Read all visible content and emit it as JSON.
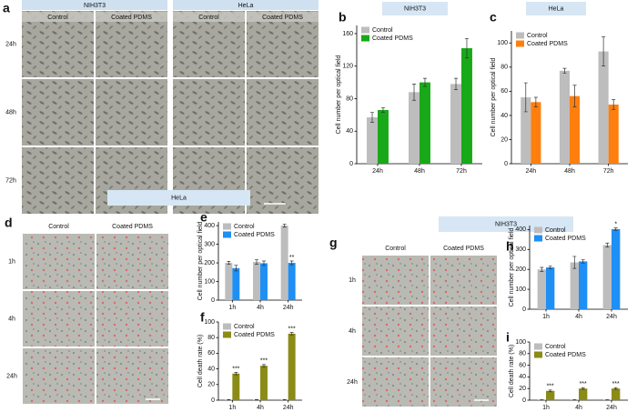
{
  "chart_data": [
    {
      "type": "bar",
      "panel": "b",
      "title": "NIH3T3",
      "ylabel": "Cell number per optical field",
      "categories": [
        "24h",
        "48h",
        "72h"
      ],
      "series": [
        {
          "name": "Control",
          "color": "#bdbdbd",
          "values": [
            57,
            88,
            98
          ],
          "errors": [
            6,
            10,
            7
          ]
        },
        {
          "name": "Coated PDMS",
          "color": "#19a819",
          "values": [
            66,
            100,
            142
          ],
          "errors": [
            3,
            5,
            12
          ]
        }
      ],
      "ylim": [
        0,
        170
      ],
      "yticks": [
        0,
        40,
        80,
        120,
        160
      ]
    },
    {
      "type": "bar",
      "panel": "c",
      "title": "HeLa",
      "ylabel": "Cell number per optical field",
      "categories": [
        "24h",
        "48h",
        "72h"
      ],
      "series": [
        {
          "name": "Control",
          "color": "#bdbdbd",
          "values": [
            55,
            77,
            93
          ],
          "errors": [
            12,
            2,
            12
          ]
        },
        {
          "name": "Coated PDMS",
          "color": "#ff7f0e",
          "values": [
            51,
            56,
            49
          ],
          "errors": [
            4,
            9,
            4
          ]
        }
      ],
      "ylim": [
        0,
        110
      ],
      "yticks": [
        0,
        20,
        40,
        60,
        80,
        100
      ]
    },
    {
      "type": "bar",
      "panel": "e",
      "ylabel": "Cell number per optical field",
      "categories": [
        "1h",
        "4h",
        "24h"
      ],
      "series": [
        {
          "name": "Control",
          "color": "#bdbdbd",
          "values": [
            200,
            205,
            400
          ],
          "errors": [
            8,
            12,
            8
          ]
        },
        {
          "name": "Coated PDMS",
          "color": "#1e8ff5",
          "values": [
            172,
            198,
            200
          ],
          "errors": [
            15,
            12,
            10
          ],
          "significance": [
            null,
            null,
            "**"
          ]
        }
      ],
      "ylim": [
        0,
        420
      ],
      "yticks": [
        0,
        100,
        200,
        300,
        400
      ]
    },
    {
      "type": "bar",
      "panel": "f",
      "ylabel": "Cell death rate (%)",
      "categories": [
        "1h",
        "4h",
        "24h"
      ],
      "series": [
        {
          "name": "Control",
          "color": "#bdbdbd",
          "values": [
            0.5,
            0.5,
            0.5
          ],
          "errors": [
            0.3,
            0.3,
            0.3
          ]
        },
        {
          "name": "Coated PDMS",
          "color": "#8b8b17",
          "values": [
            34,
            44,
            85
          ],
          "errors": [
            1.5,
            1.5,
            1.5
          ],
          "significance": [
            "***",
            "***",
            "***"
          ]
        }
      ],
      "ylim": [
        0,
        100
      ],
      "yticks": [
        0,
        20,
        40,
        60,
        80,
        100
      ]
    },
    {
      "type": "bar",
      "panel": "h",
      "ylabel": "Cell number per optical field",
      "categories": [
        "1h",
        "4h",
        "24h"
      ],
      "series": [
        {
          "name": "Control",
          "color": "#bdbdbd",
          "values": [
            200,
            235,
            322
          ],
          "errors": [
            10,
            30,
            10
          ]
        },
        {
          "name": "Coated PDMS",
          "color": "#1e8ff5",
          "values": [
            210,
            240,
            402
          ],
          "errors": [
            6,
            8,
            6
          ],
          "significance": [
            null,
            null,
            "*"
          ]
        }
      ],
      "ylim": [
        0,
        420
      ],
      "yticks": [
        0,
        100,
        200,
        300,
        400
      ]
    },
    {
      "type": "bar",
      "panel": "i",
      "ylabel": "Cell death rate (%)",
      "categories": [
        "1h",
        "4h",
        "24h"
      ],
      "series": [
        {
          "name": "Control",
          "color": "#bdbdbd",
          "values": [
            0.5,
            0.5,
            0.5
          ],
          "errors": [
            0.3,
            0.3,
            0.3
          ]
        },
        {
          "name": "Coated PDMS",
          "color": "#8b8b17",
          "values": [
            16,
            20,
            20
          ],
          "errors": [
            1.5,
            1.5,
            1.5
          ],
          "significance": [
            "***",
            "***",
            "***"
          ]
        }
      ],
      "ylim": [
        0,
        100
      ],
      "yticks": [
        0,
        20,
        40,
        60,
        80,
        100
      ]
    }
  ],
  "micrographs": [
    {
      "panel": "a",
      "groups": [
        {
          "title": "NIH3T3",
          "columns": [
            "Control",
            "Coated PDMS"
          ]
        },
        {
          "title": "HeLa",
          "columns": [
            "Control",
            "Coated PDMS"
          ]
        }
      ],
      "rows": [
        "24h",
        "48h",
        "72h"
      ]
    },
    {
      "panel": "d",
      "banner": "HeLa",
      "groups": [
        {
          "columns": [
            "Control",
            "Coated PDMS"
          ]
        }
      ],
      "rows": [
        "1h",
        "4h",
        "24h"
      ]
    },
    {
      "panel": "g",
      "banner": "NIH3T3",
      "groups": [
        {
          "columns": [
            "Control",
            "Coated PDMS"
          ]
        }
      ],
      "rows": [
        "1h",
        "4h",
        "24h"
      ]
    }
  ]
}
